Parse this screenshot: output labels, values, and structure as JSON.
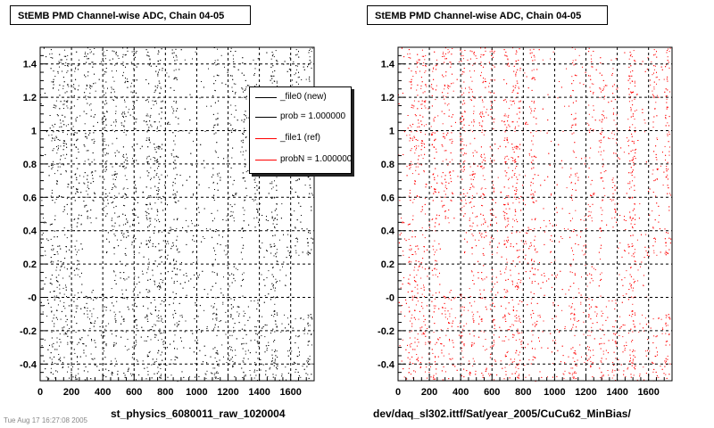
{
  "colors": {
    "new": "#000000",
    "ref": "#ff0000",
    "grid": "#000000",
    "background": "#ffffff"
  },
  "left_panel": {
    "title": "StEMB PMD Channel-wise ADC, Chain 04-05",
    "caption": "st_physics_6080011_raw_1020004"
  },
  "right_panel": {
    "title": "StEMB PMD Channel-wise ADC, Chain 04-05",
    "caption": "dev/daq_sl302.ittf/Sat/year_2005/CuCu62_MinBias/"
  },
  "legend": {
    "entries": [
      {
        "label": "_file0 (new)",
        "color": "#000000"
      },
      {
        "label": "prob = 1.000000",
        "color": "#000000"
      },
      {
        "label": "_file1 (ref)",
        "color": "#ff0000"
      },
      {
        "label": "probN = 1.000000",
        "color": "#ff0000"
      }
    ]
  },
  "stamp": "Tue Aug 17 16:27:08 2005",
  "chart_data": [
    {
      "type": "scatter",
      "series_color": "#000000",
      "xlim": [
        0,
        1750
      ],
      "ylim": [
        -0.5,
        1.5
      ],
      "x_ticks": [
        "0",
        "200",
        "400",
        "600",
        "800",
        "1000",
        "1200",
        "1400",
        "1600"
      ],
      "x_tick_values": [
        0,
        200,
        400,
        600,
        800,
        1000,
        1200,
        1400,
        1600
      ],
      "y_ticks": [
        "-0.4",
        "-0.2",
        "-0",
        "0.2",
        "0.4",
        "0.6",
        "0.8",
        "1",
        "1.2",
        "1.4"
      ],
      "y_tick_values": [
        -0.4,
        -0.2,
        0,
        0.2,
        0.4,
        0.6,
        0.8,
        1.0,
        1.2,
        1.4
      ],
      "grid": true,
      "dense_columns_x": [
        80,
        115,
        160,
        230,
        290,
        330,
        410,
        470,
        540,
        600,
        690,
        740,
        760,
        860,
        1120,
        1230,
        1300,
        1380,
        1480,
        1500,
        1640,
        1720
      ],
      "empty_regions": [
        [
          270,
          420,
          0.05,
          0.45
        ],
        [
          1200,
          1270,
          0.2,
          0.45
        ],
        [
          1300,
          1400,
          0.0,
          0.4
        ],
        [
          1590,
          1750,
          -0.1,
          0.25
        ]
      ]
    },
    {
      "type": "scatter",
      "series_color": "#ff0000",
      "xlim": [
        0,
        1750
      ],
      "ylim": [
        -0.5,
        1.5
      ],
      "x_ticks": [
        "0",
        "200",
        "400",
        "600",
        "800",
        "1000",
        "1200",
        "1400",
        "1600"
      ],
      "x_tick_values": [
        0,
        200,
        400,
        600,
        800,
        1000,
        1200,
        1400,
        1600
      ],
      "y_ticks": [
        "-0.4",
        "-0.2",
        "-0",
        "0.2",
        "0.4",
        "0.6",
        "0.8",
        "1",
        "1.2",
        "1.4"
      ],
      "y_tick_values": [
        -0.4,
        -0.2,
        0,
        0.2,
        0.4,
        0.6,
        0.8,
        1.0,
        1.2,
        1.4
      ],
      "grid": true,
      "dense_columns_x": [
        80,
        115,
        160,
        230,
        290,
        330,
        410,
        470,
        540,
        600,
        690,
        740,
        760,
        860,
        1120,
        1230,
        1300,
        1380,
        1480,
        1500,
        1640,
        1720
      ],
      "empty_regions": [
        [
          270,
          420,
          0.05,
          0.45
        ],
        [
          1200,
          1270,
          0.2,
          0.45
        ],
        [
          1300,
          1400,
          0.0,
          0.4
        ],
        [
          1590,
          1750,
          -0.1,
          0.25
        ]
      ]
    }
  ]
}
